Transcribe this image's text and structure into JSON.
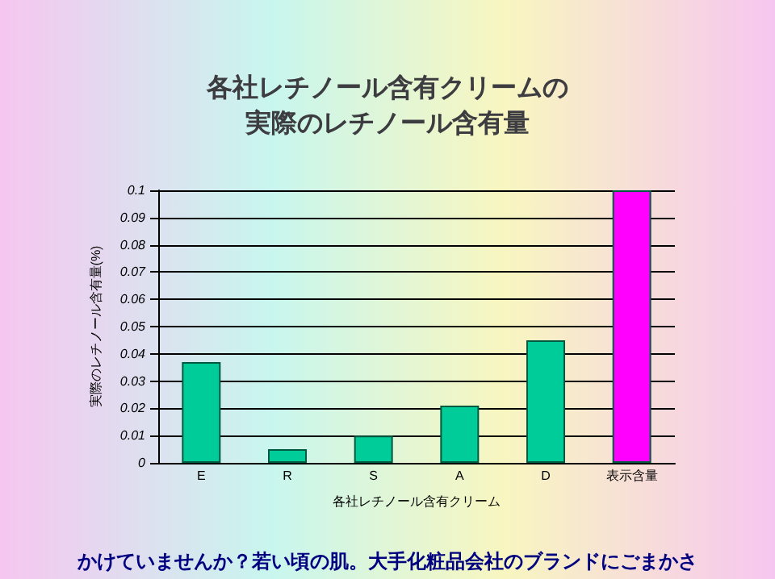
{
  "chart_data": {
    "type": "bar",
    "title": "各社レチノール含有クリームの実際のレチノール含有量",
    "xlabel": "各社レチノール含有クリーム",
    "ylabel": "実際のレチノール含有量(%)",
    "categories": [
      "E",
      "R",
      "S",
      "A",
      "D",
      "表示含量"
    ],
    "values": [
      0.037,
      0.005,
      0.01,
      0.021,
      0.045,
      0.1
    ],
    "colors": [
      "#00cc99",
      "#00cc99",
      "#00cc99",
      "#00cc99",
      "#00cc99",
      "#ff00ff"
    ],
    "ylim": [
      0,
      0.1
    ],
    "yticks": [
      0,
      0.01,
      0.02,
      0.03,
      0.04,
      0.05,
      0.06,
      0.07,
      0.08,
      0.09,
      0.1
    ],
    "grid": "y",
    "annotations": [
      "かけていませんか？若い頃の肌。大手化粧品会社のブランドにごまかさ"
    ]
  }
}
